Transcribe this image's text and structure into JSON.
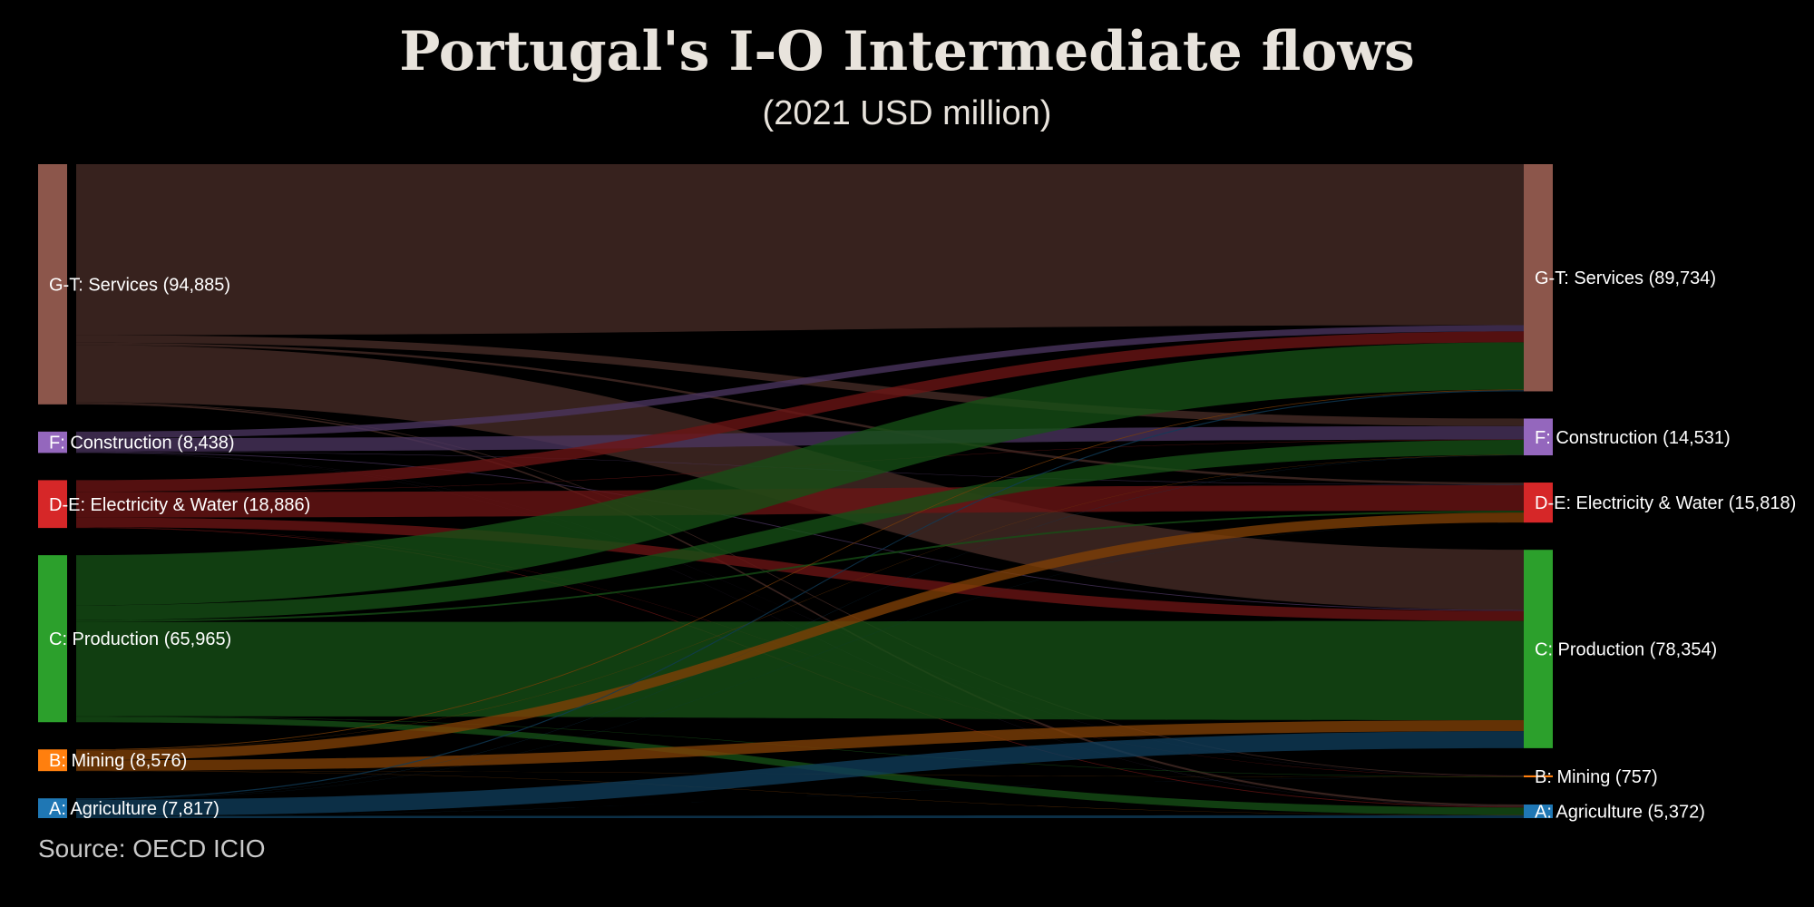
{
  "title": "Portugal's I-O Intermediate flows",
  "subtitle": "(2021 USD million)",
  "source": "Source: OECD ICIO",
  "chart_data": {
    "type": "sankey",
    "title": "Portugal's I-O Intermediate flows",
    "subtitle": "(2021 USD million)",
    "sources": [
      {
        "id": "GT",
        "label": "G-T: Services (94,885)",
        "value": 94885,
        "color": "#8c564b"
      },
      {
        "id": "F",
        "label": "F: Construction (8,438)",
        "value": 8438,
        "color": "#9467bd"
      },
      {
        "id": "DE",
        "label": "D-E: Electricity & Water (18,886)",
        "value": 18886,
        "color": "#d62728"
      },
      {
        "id": "C",
        "label": "C: Production (65,965)",
        "value": 65965,
        "color": "#2ca02c"
      },
      {
        "id": "B",
        "label": "B: Mining (8,576)",
        "value": 8576,
        "color": "#ff7f0e"
      },
      {
        "id": "A",
        "label": "A: Agriculture (7,817)",
        "value": 7817,
        "color": "#1f77b4"
      }
    ],
    "targets": [
      {
        "id": "GT",
        "label": "G-T: Services (89,734)",
        "value": 89734,
        "color": "#8c564b"
      },
      {
        "id": "F",
        "label": "F: Construction (14,531)",
        "value": 14531,
        "color": "#9467bd"
      },
      {
        "id": "DE",
        "label": "D-E: Electricity & Water (15,818)",
        "value": 15818,
        "color": "#d62728"
      },
      {
        "id": "C",
        "label": "C: Production (78,354)",
        "value": 78354,
        "color": "#2ca02c"
      },
      {
        "id": "B",
        "label": "B: Mining (757)",
        "value": 757,
        "color": "#ff7f0e"
      },
      {
        "id": "A",
        "label": "A: Agriculture (5,372)",
        "value": 5372,
        "color": "#1f77b4"
      }
    ],
    "flows": [
      {
        "source": "GT",
        "target": "GT",
        "value": 67500
      },
      {
        "source": "GT",
        "target": "F",
        "value": 3000
      },
      {
        "source": "GT",
        "target": "DE",
        "value": 900
      },
      {
        "source": "GT",
        "target": "C",
        "value": 22600
      },
      {
        "source": "GT",
        "target": "B",
        "value": 300
      },
      {
        "source": "GT",
        "target": "A",
        "value": 585
      },
      {
        "source": "F",
        "target": "GT",
        "value": 2600
      },
      {
        "source": "F",
        "target": "F",
        "value": 5300
      },
      {
        "source": "F",
        "target": "DE",
        "value": 150
      },
      {
        "source": "F",
        "target": "C",
        "value": 300
      },
      {
        "source": "F",
        "target": "B",
        "value": 40
      },
      {
        "source": "F",
        "target": "A",
        "value": 48
      },
      {
        "source": "DE",
        "target": "GT",
        "value": 4600
      },
      {
        "source": "DE",
        "target": "F",
        "value": 150
      },
      {
        "source": "DE",
        "target": "DE",
        "value": 10000
      },
      {
        "source": "DE",
        "target": "C",
        "value": 3800
      },
      {
        "source": "DE",
        "target": "B",
        "value": 100
      },
      {
        "source": "DE",
        "target": "A",
        "value": 236
      },
      {
        "source": "C",
        "target": "GT",
        "value": 19800
      },
      {
        "source": "C",
        "target": "F",
        "value": 5900
      },
      {
        "source": "C",
        "target": "DE",
        "value": 700
      },
      {
        "source": "C",
        "target": "C",
        "value": 37200
      },
      {
        "source": "C",
        "target": "B",
        "value": 165
      },
      {
        "source": "C",
        "target": "A",
        "value": 2200
      },
      {
        "source": "B",
        "target": "GT",
        "value": 300
      },
      {
        "source": "B",
        "target": "F",
        "value": 100
      },
      {
        "source": "B",
        "target": "DE",
        "value": 3900
      },
      {
        "source": "B",
        "target": "C",
        "value": 4112
      },
      {
        "source": "B",
        "target": "B",
        "value": 80
      },
      {
        "source": "B",
        "target": "A",
        "value": 84
      },
      {
        "source": "A",
        "target": "GT",
        "value": 450
      },
      {
        "source": "A",
        "target": "F",
        "value": 81
      },
      {
        "source": "A",
        "target": "DE",
        "value": 40
      },
      {
        "source": "A",
        "target": "C",
        "value": 6392
      },
      {
        "source": "A",
        "target": "B",
        "value": 15
      },
      {
        "source": "A",
        "target": "A",
        "value": 839
      }
    ]
  }
}
